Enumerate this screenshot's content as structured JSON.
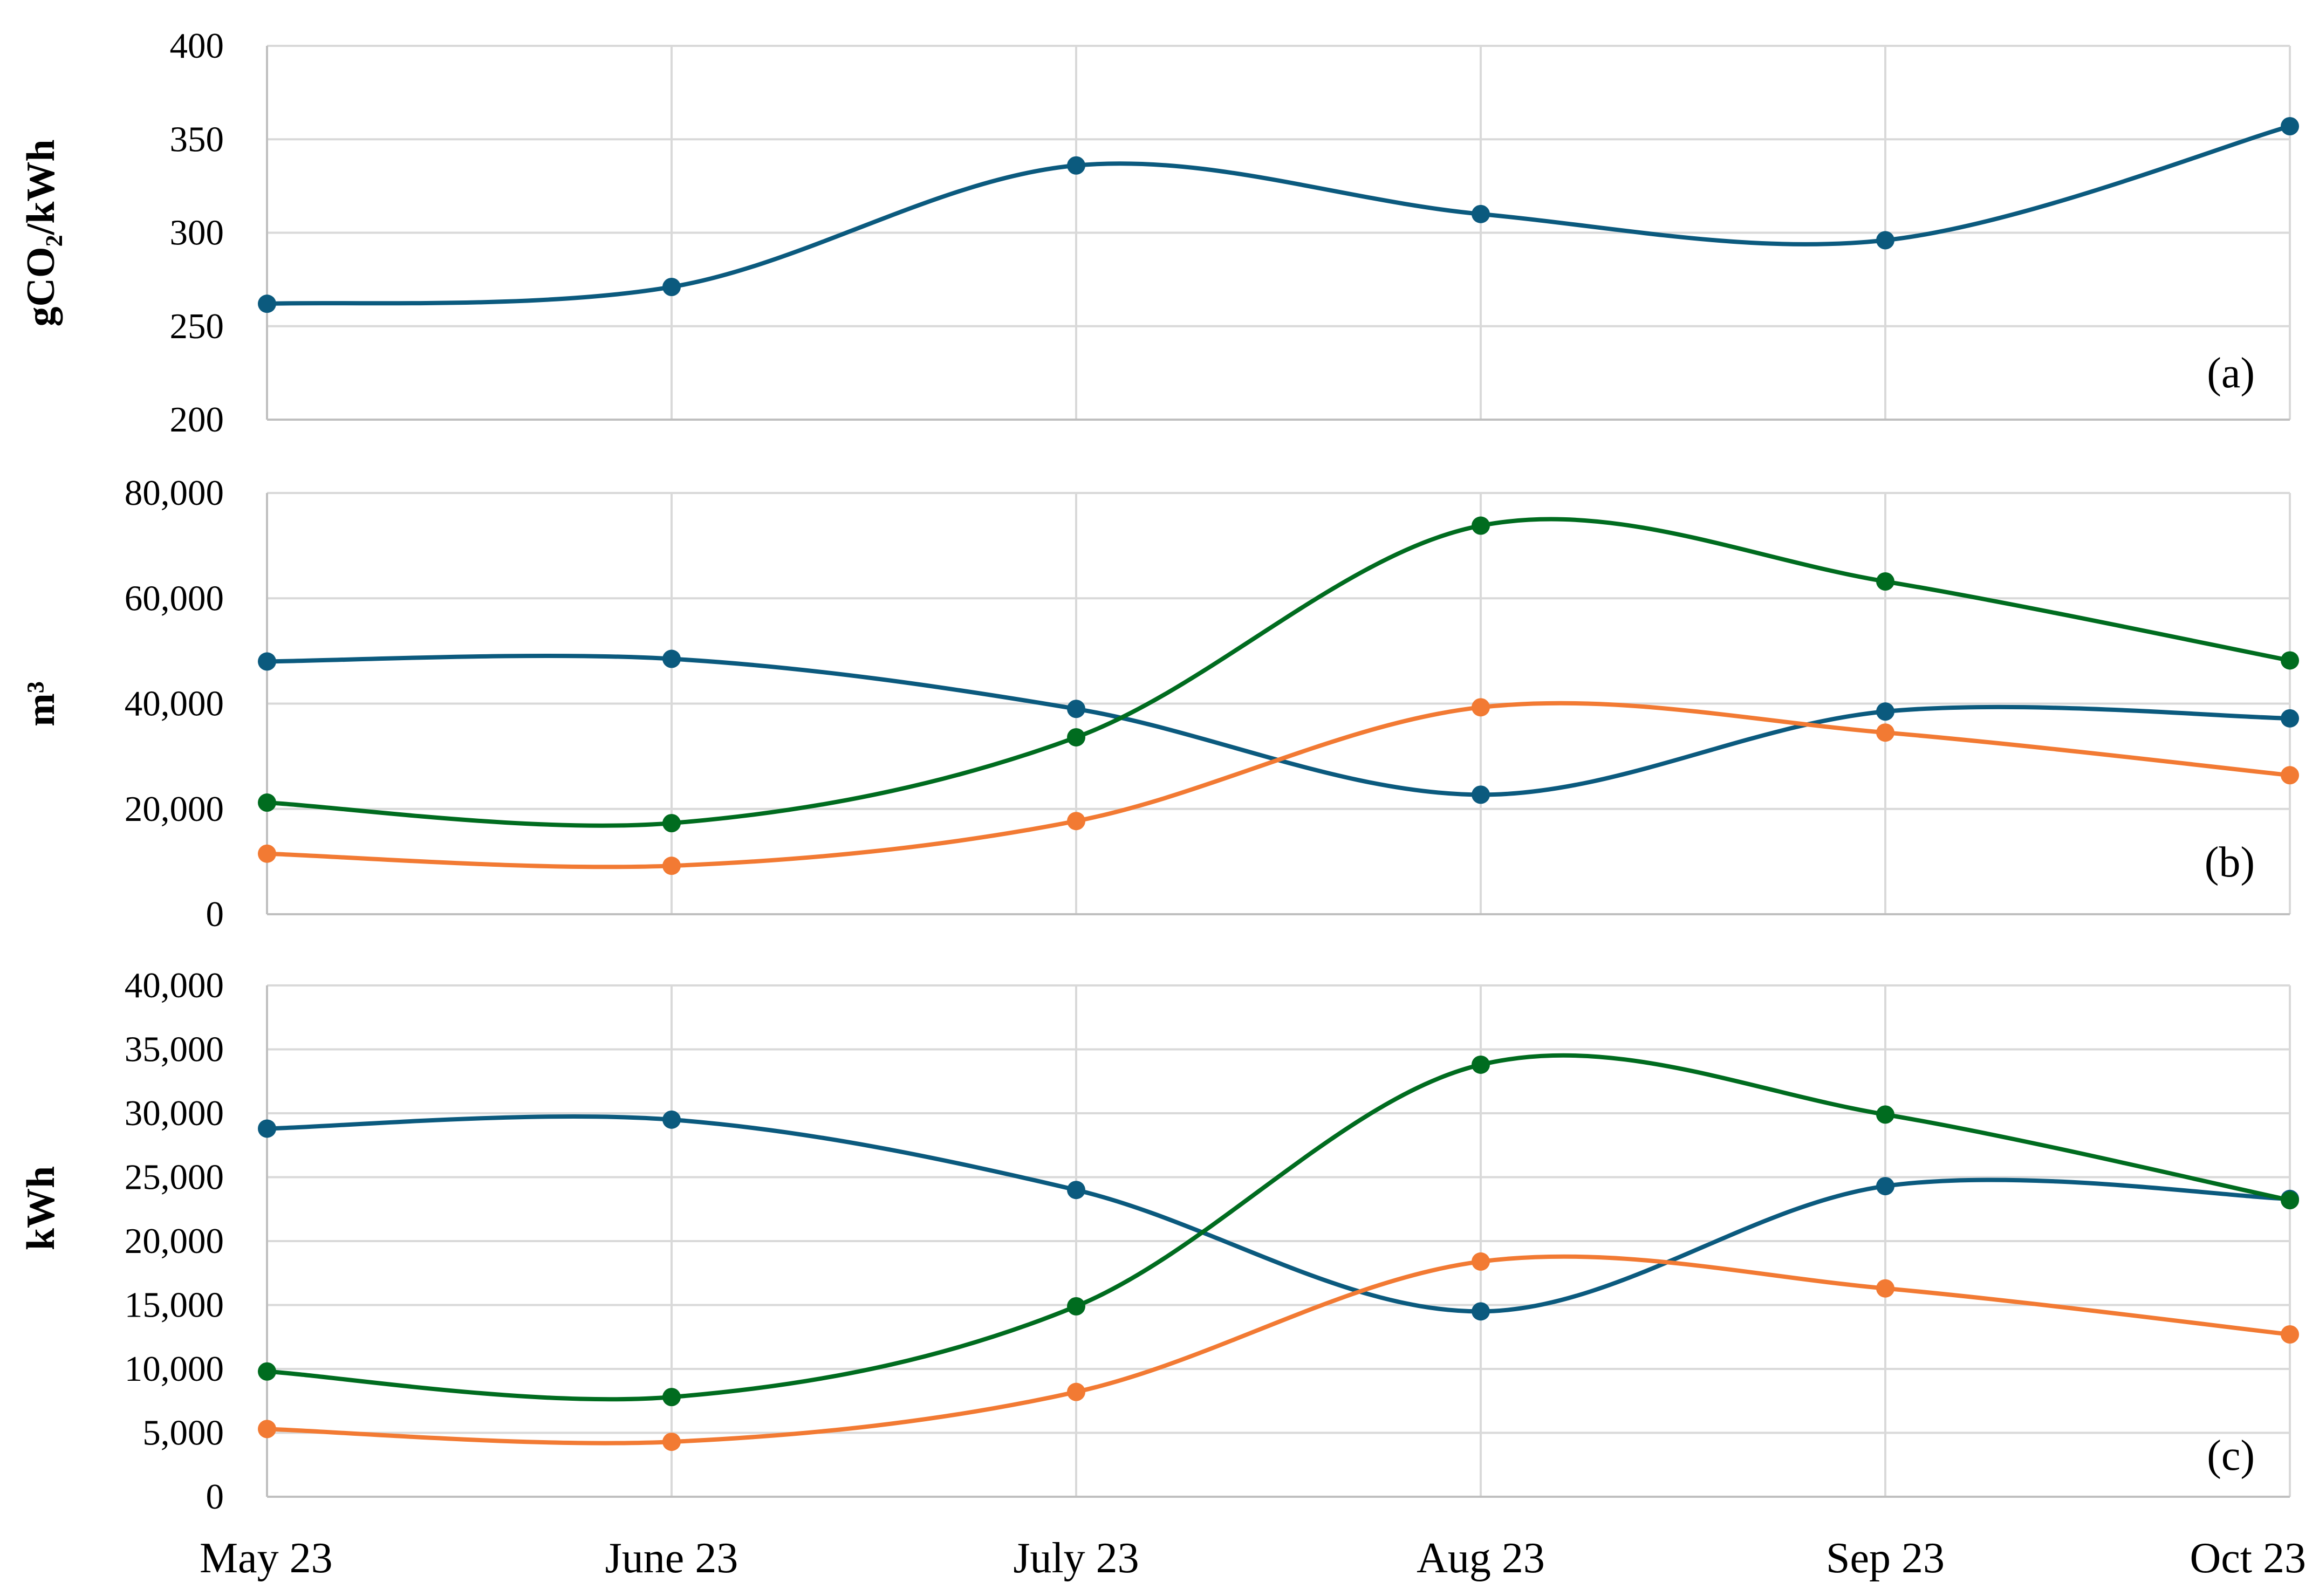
{
  "colors": {
    "blue": "#0b5a7e",
    "green": "#006c1f",
    "orange": "#f27a33"
  },
  "chart_data": [
    {
      "type": "line",
      "panel": "(a)",
      "ylabel": "gCO₂/kWh",
      "categories": [
        "May 23",
        "June 23",
        "July 23",
        "Aug 23",
        "Sep 23",
        "Oct 23"
      ],
      "ylim": [
        200,
        400
      ],
      "yticks": [
        "200",
        "250",
        "300",
        "350",
        "400"
      ],
      "grid": true,
      "smooth": true,
      "series": [
        {
          "color": "#0b5a7e",
          "values": [
            262,
            271,
            336,
            310,
            296,
            357
          ]
        }
      ]
    },
    {
      "type": "line",
      "panel": "(b)",
      "ylabel": "m³",
      "categories": [
        "May 23",
        "June 23",
        "July 23",
        "Aug 23",
        "Sep 23",
        "Oct 23"
      ],
      "ylim": [
        0,
        80000
      ],
      "yticks": [
        "0",
        "20,000",
        "40,000",
        "60,000",
        "80,000"
      ],
      "grid": true,
      "smooth": true,
      "series": [
        {
          "color": "#0b5a7e",
          "values": [
            48000,
            48500,
            39000,
            22700,
            38500,
            37200
          ]
        },
        {
          "color": "#006c1f",
          "values": [
            21200,
            17300,
            33600,
            73800,
            63200,
            48200
          ]
        },
        {
          "color": "#f27a33",
          "values": [
            11500,
            9200,
            17700,
            39300,
            34500,
            26400
          ]
        }
      ]
    },
    {
      "type": "line",
      "panel": "(c)",
      "ylabel": "kWh",
      "categories": [
        "May 23",
        "June 23",
        "July 23",
        "Aug 23",
        "Sep 23",
        "Oct 23"
      ],
      "ylim": [
        0,
        40000
      ],
      "yticks": [
        "0",
        "5,000",
        "10,000",
        "15,000",
        "20,000",
        "25,000",
        "30,000",
        "35,000",
        "40,000"
      ],
      "grid": true,
      "smooth": true,
      "series": [
        {
          "color": "#0b5a7e",
          "values": [
            28800,
            29500,
            24000,
            14500,
            24300,
            23300
          ]
        },
        {
          "color": "#006c1f",
          "values": [
            9800,
            7800,
            14900,
            33800,
            29900,
            23200
          ]
        },
        {
          "color": "#f27a33",
          "values": [
            5300,
            4300,
            8200,
            18400,
            16300,
            12700
          ]
        }
      ]
    }
  ]
}
